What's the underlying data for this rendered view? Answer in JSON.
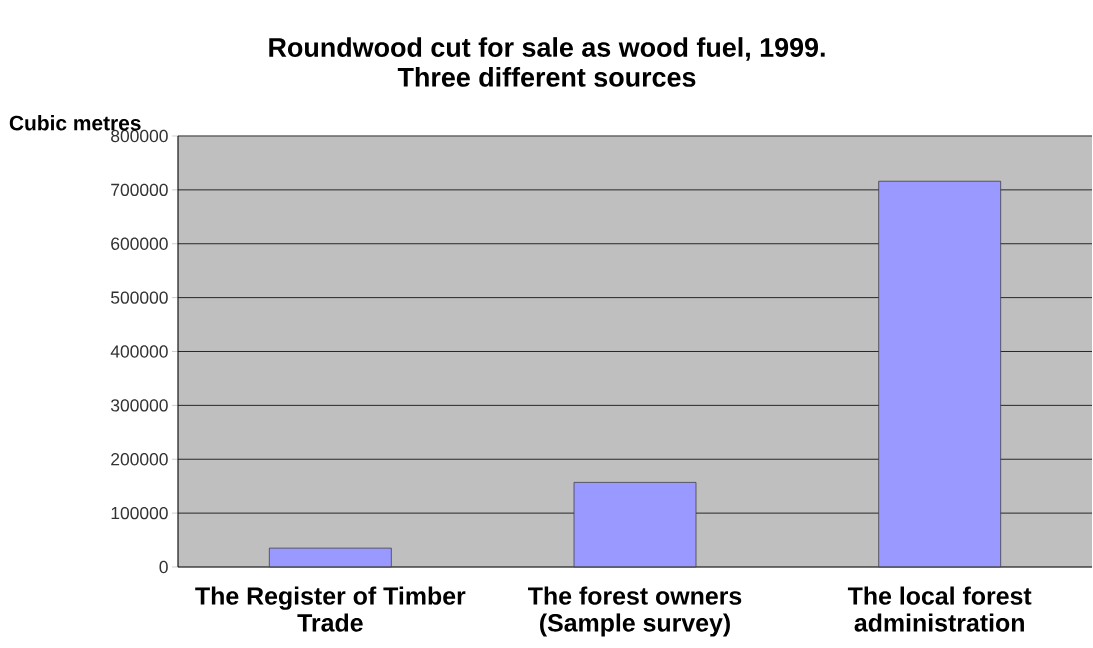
{
  "chart_data": {
    "type": "bar",
    "title": "Roundwood cut for sale as wood fuel, 1999. Three different sources",
    "ylabel": "Cubic  metres",
    "categories": [
      "The Register of Timber Trade",
      "The forest owners (Sample survey)",
      "The local forest administration"
    ],
    "values": [
      35000,
      157000,
      716000
    ],
    "color": "#9999ff",
    "ylim": [
      0,
      800000
    ],
    "yticks": [
      0,
      100000,
      200000,
      300000,
      400000,
      500000,
      600000,
      700000,
      800000
    ],
    "grid": "y"
  }
}
